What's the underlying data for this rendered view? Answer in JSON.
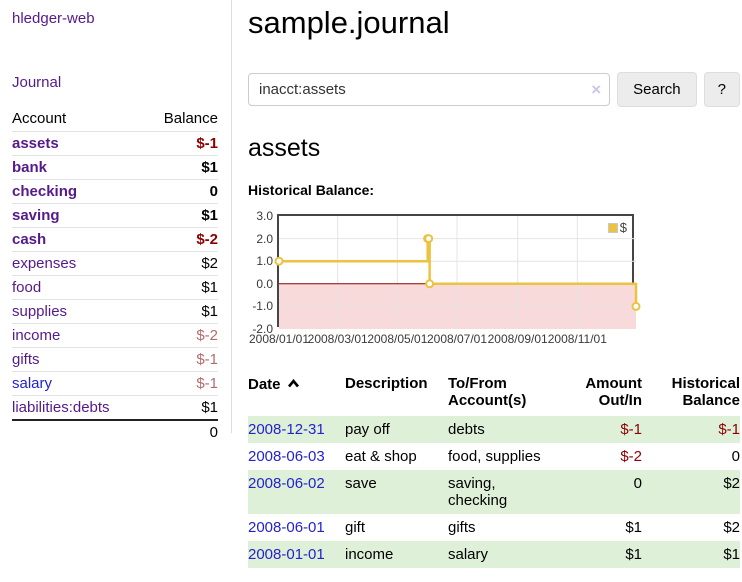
{
  "app": {
    "brand": "hledger-web"
  },
  "sidebar": {
    "nav": {
      "journal": "Journal"
    },
    "headers": {
      "account": "Account",
      "balance": "Balance"
    },
    "rows": [
      {
        "name": "assets",
        "balance": "$-1"
      },
      {
        "name": "bank",
        "balance": "$1"
      },
      {
        "name": "checking",
        "balance": "0"
      },
      {
        "name": "saving",
        "balance": "$1"
      },
      {
        "name": "cash",
        "balance": "$-2"
      },
      {
        "name": "expenses",
        "balance": "$2"
      },
      {
        "name": "food",
        "balance": "$1"
      },
      {
        "name": "supplies",
        "balance": "$1"
      },
      {
        "name": "income",
        "balance": "$-2"
      },
      {
        "name": "gifts",
        "balance": "$-1"
      },
      {
        "name": "salary",
        "balance": "$-1"
      },
      {
        "name": "liabilities:debts",
        "balance": "$1"
      }
    ],
    "total": "0"
  },
  "main": {
    "title": "sample.journal",
    "search": {
      "value": "inacct:assets",
      "clear": "×",
      "search_button": "Search",
      "help_button": "?"
    },
    "account_heading": "assets",
    "chart_label": "Historical Balance:"
  },
  "chart_data": {
    "type": "line",
    "title": "Historical Balance",
    "legend": {
      "position": "top-right",
      "entries": [
        "$"
      ]
    },
    "series": [
      {
        "name": "$",
        "color": "#edc240",
        "step": true,
        "points": [
          [
            "2008-01-01",
            1
          ],
          [
            "2008-06-01",
            2
          ],
          [
            "2008-06-02",
            2
          ],
          [
            "2008-06-03",
            0
          ],
          [
            "2008-12-31",
            -1
          ]
        ]
      }
    ],
    "x_range": [
      "2008-01-01",
      "2008-12-31"
    ],
    "ylim": [
      -2,
      3
    ],
    "yticks": [
      "3.0",
      "2.0",
      "1.0",
      "0.0",
      "-1.0",
      "-2.0"
    ],
    "xticks": [
      "2008/01/01",
      "2008/03/01",
      "2008/05/01",
      "2008/07/01",
      "2008/09/01",
      "2008/11/01"
    ],
    "grid": true,
    "negative_region_color": "#f9dada",
    "zero_line_color": "#8b0000",
    "border_color": "#454545"
  },
  "register": {
    "headers": {
      "date": "Date",
      "description": "Description",
      "accounts": "To/From Account(s)",
      "amount": "Amount Out/In",
      "balance": "Historical Balance"
    },
    "rows": [
      {
        "date": "2008-12-31",
        "description": "pay off",
        "accounts": "debts",
        "amount": "$-1",
        "balance": "$-1"
      },
      {
        "date": "2008-06-03",
        "description": "eat & shop",
        "accounts": "food, supplies",
        "amount": "$-2",
        "balance": "0"
      },
      {
        "date": "2008-06-02",
        "description": "save",
        "accounts": "saving, checking",
        "amount": "0",
        "balance": "$2"
      },
      {
        "date": "2008-06-01",
        "description": "gift",
        "accounts": "gifts",
        "amount": "$1",
        "balance": "$2"
      },
      {
        "date": "2008-01-01",
        "description": "income",
        "accounts": "salary",
        "amount": "$1",
        "balance": "$1"
      }
    ]
  }
}
